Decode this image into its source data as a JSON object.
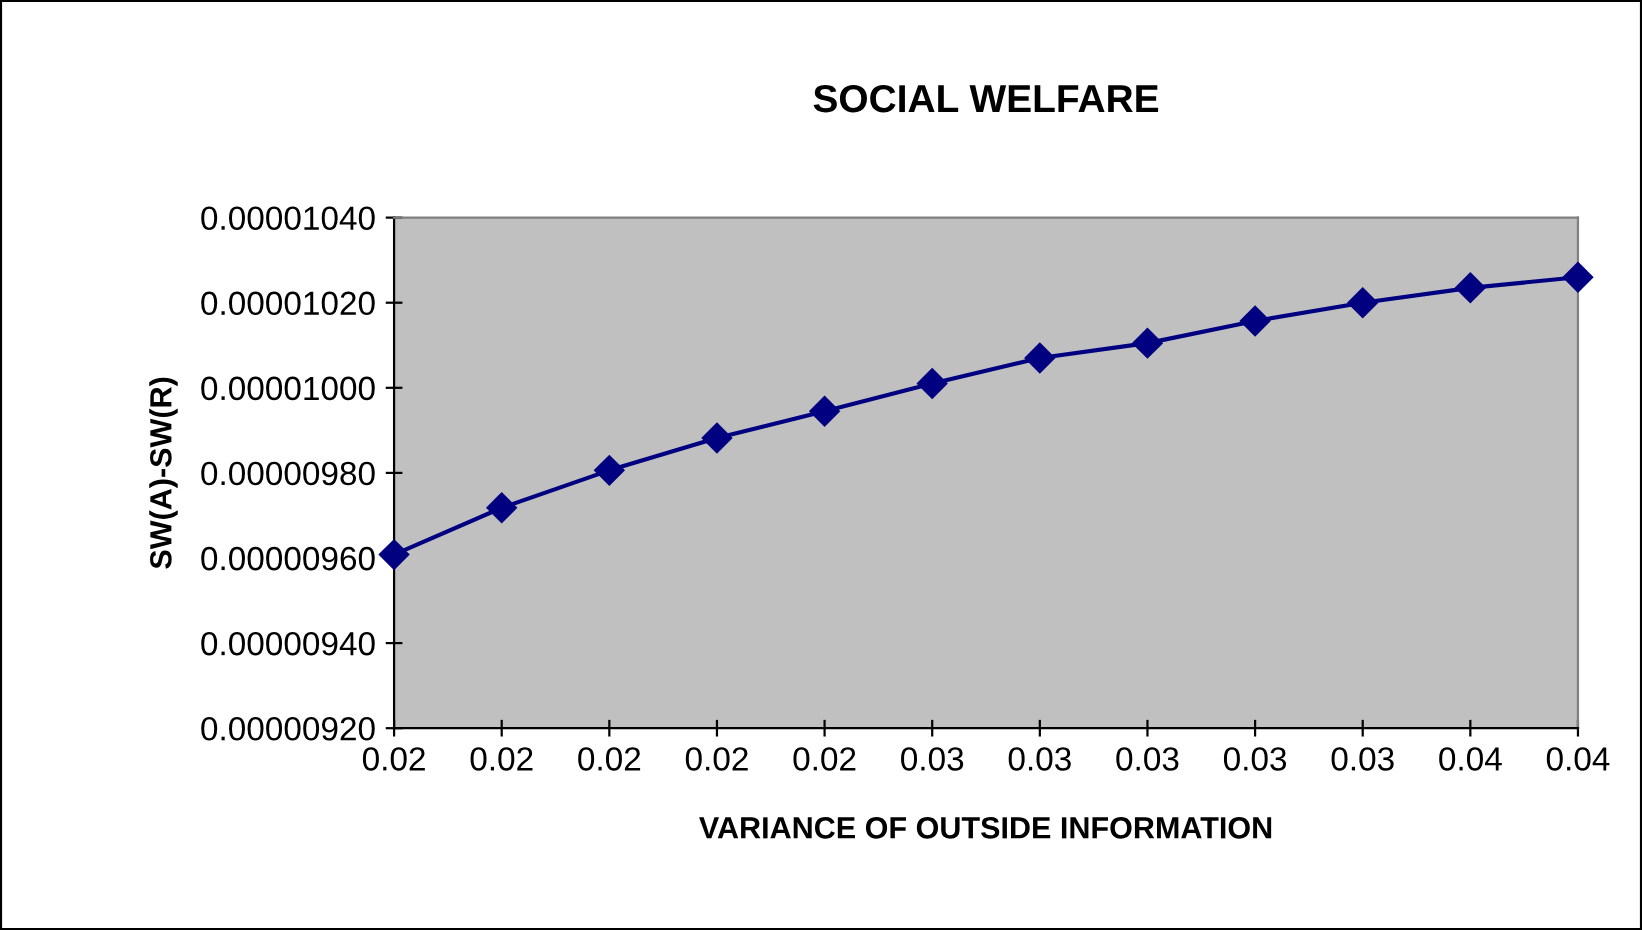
{
  "chart_data": {
    "type": "line",
    "title": "SOCIAL WELFARE",
    "xlabel": "VARIANCE OF OUTSIDE INFORMATION",
    "ylabel": "SW(A)-SW(R)",
    "categories": [
      "0.02",
      "0.02",
      "0.02",
      "0.02",
      "0.02",
      "0.03",
      "0.03",
      "0.03",
      "0.03",
      "0.03",
      "0.04",
      "0.04"
    ],
    "series": [
      {
        "color": "#000080",
        "values": [
          9.608e-06,
          9.718e-06,
          9.806e-06,
          9.882e-06,
          9.945e-06,
          1.001e-05,
          1.007e-05,
          1.0105e-05,
          1.0157e-05,
          1.02e-05,
          1.0235e-05,
          1.026e-05
        ]
      }
    ],
    "ylim": [
      9.2e-06,
      1.04e-05
    ],
    "yticks": [
      {
        "value": 9.2e-06,
        "label": "0.00000920"
      },
      {
        "value": 9.4e-06,
        "label": "0.00000940"
      },
      {
        "value": 9.6e-06,
        "label": "0.00000960"
      },
      {
        "value": 9.8e-06,
        "label": "0.00000980"
      },
      {
        "value": 1e-05,
        "label": "0.00001000"
      },
      {
        "value": 1.02e-05,
        "label": "0.00001020"
      },
      {
        "value": 1.04e-05,
        "label": "0.00001040"
      }
    ],
    "marker": "diamond",
    "line_style": "solid",
    "grid": false,
    "legend": false
  }
}
